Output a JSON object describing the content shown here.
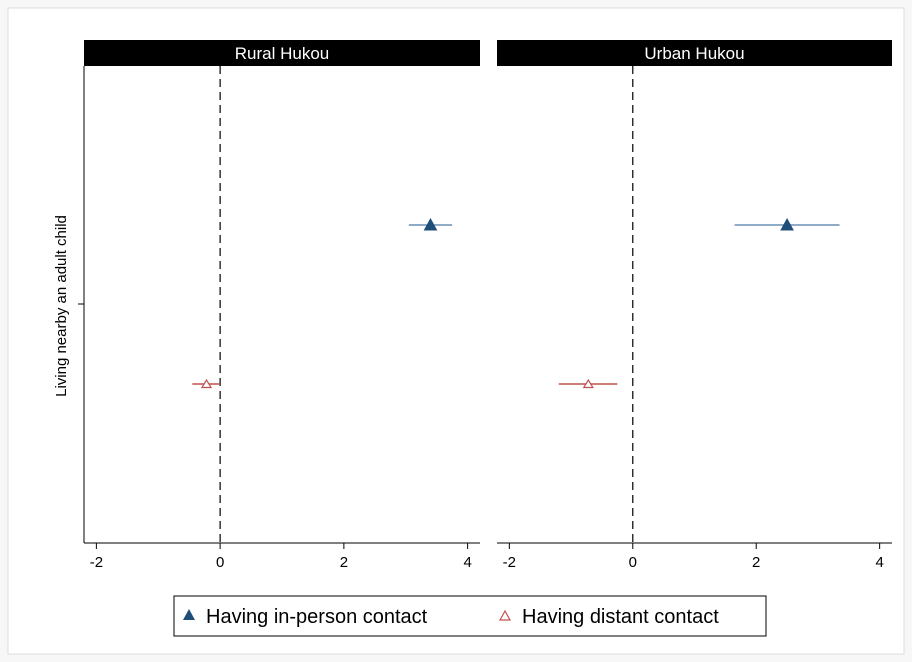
{
  "chart_data": {
    "type": "scatter",
    "subtype": "coefficient-plot-with-ci",
    "panels": [
      "Rural Hukou",
      "Urban Hukou"
    ],
    "ylabel": "Living nearby an adult child",
    "xlabel": "",
    "xlim": [
      -2.2,
      4.2
    ],
    "xticks": [
      -2,
      0,
      2,
      4
    ],
    "reference_line": 0,
    "series": [
      {
        "name": "Having in-person contact",
        "marker": "filled-triangle",
        "color": "#1f4e79",
        "ci_color": "#6b8fb3",
        "points": [
          {
            "panel": "Rural Hukou",
            "estimate": 3.4,
            "ci": [
              3.05,
              3.75
            ]
          },
          {
            "panel": "Urban Hukou",
            "estimate": 2.5,
            "ci": [
              1.65,
              3.35
            ]
          }
        ]
      },
      {
        "name": "Having distant contact",
        "marker": "hollow-triangle",
        "color": "#c0504d",
        "ci_color": "#c0504d",
        "points": [
          {
            "panel": "Rural Hukou",
            "estimate": -0.22,
            "ci": [
              -0.45,
              0.0
            ]
          },
          {
            "panel": "Urban Hukou",
            "estimate": -0.72,
            "ci": [
              -1.2,
              -0.25
            ]
          }
        ]
      }
    ],
    "legend": {
      "position": "bottom"
    },
    "grid": false
  }
}
